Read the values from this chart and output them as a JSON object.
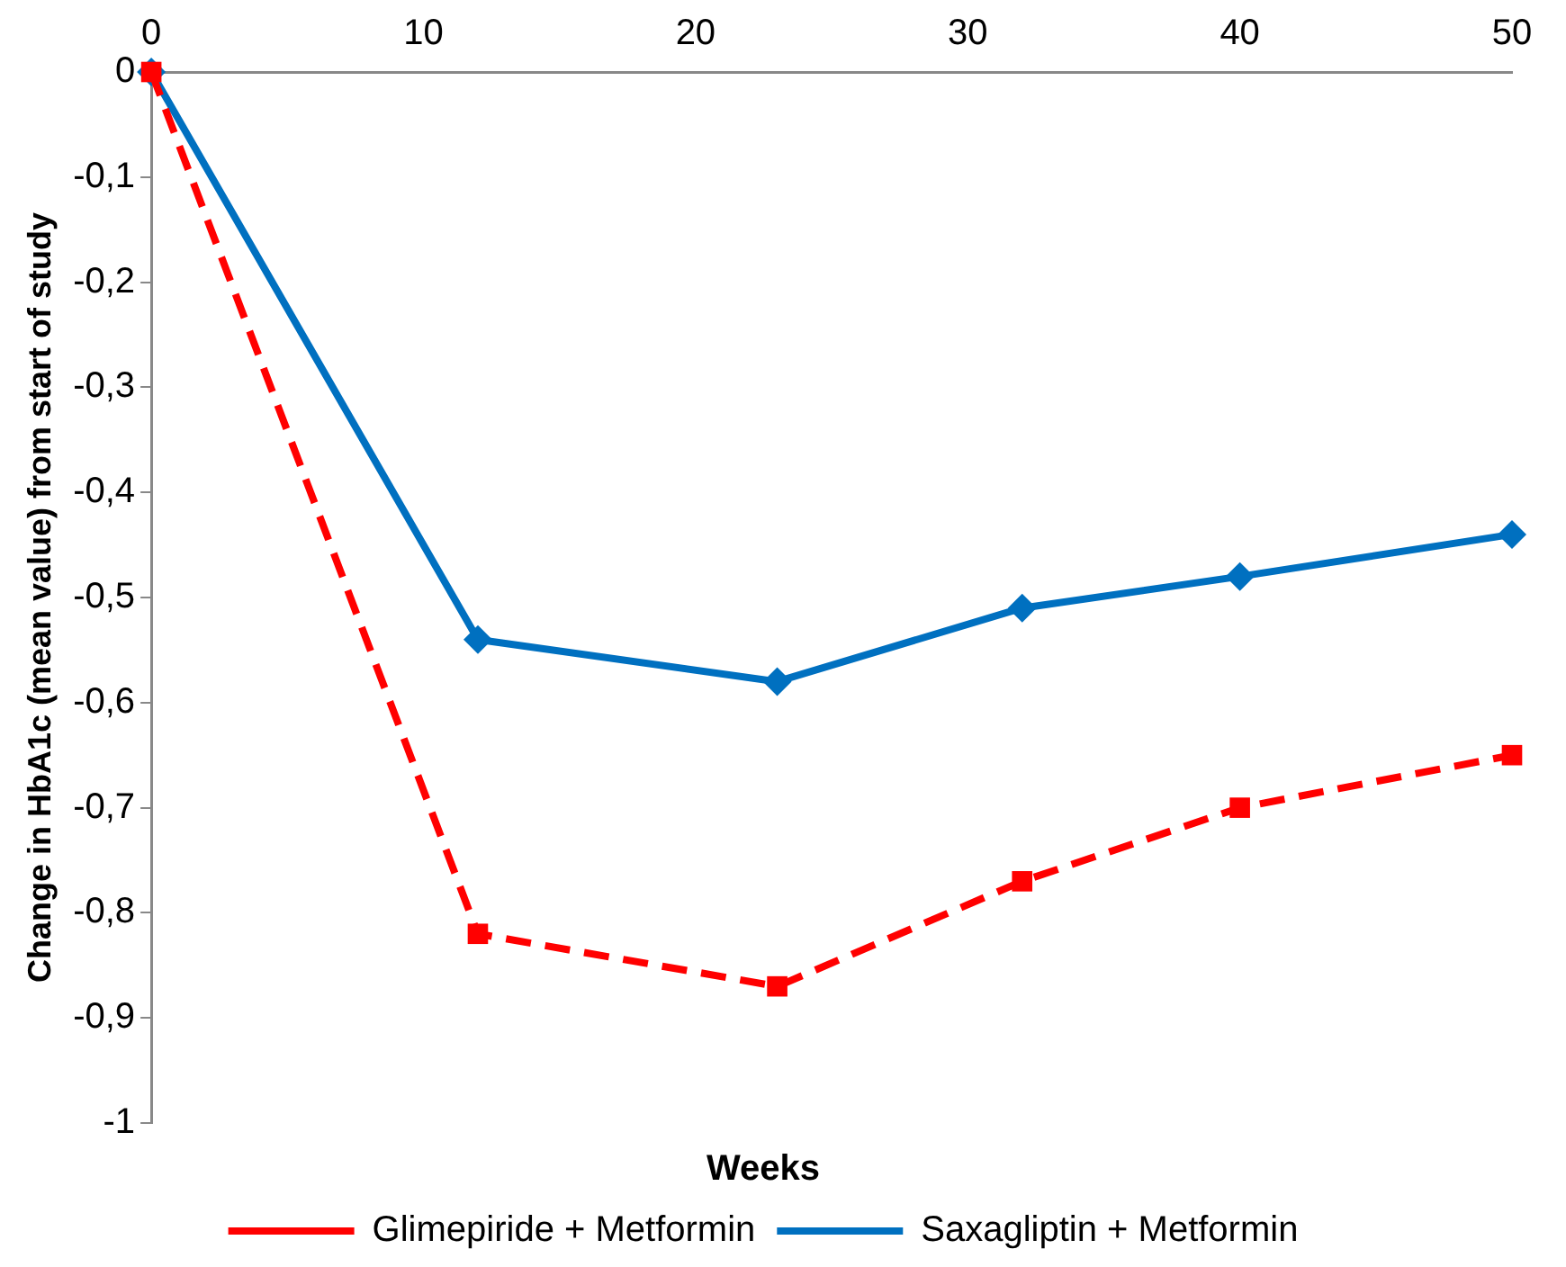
{
  "chart_data": {
    "type": "line",
    "xlabel": "Weeks",
    "ylabel": "Change in HbA1c (mean value) from start of study",
    "series": [
      {
        "name": "Glimepiride + Metformin",
        "color": "#ff0000",
        "marker": "square",
        "line_style": "dashed",
        "x": [
          0,
          12,
          23,
          32,
          40,
          50
        ],
        "values": [
          0,
          -0.82,
          -0.87,
          -0.77,
          -0.7,
          -0.65
        ]
      },
      {
        "name": "Saxagliptin + Metformin",
        "color": "#0070c0",
        "marker": "diamond",
        "line_style": "solid",
        "x": [
          0,
          12,
          23,
          32,
          40,
          50
        ],
        "values": [
          0,
          -0.54,
          -0.58,
          -0.51,
          -0.48,
          -0.44
        ]
      }
    ],
    "xlim": [
      0,
      50
    ],
    "xticks": [
      0,
      10,
      20,
      30,
      40,
      50
    ],
    "ylim": [
      -1,
      0
    ],
    "yticks": [
      {
        "value": -1,
        "label": "-1"
      },
      {
        "value": -0.9,
        "label": "-0,9"
      },
      {
        "value": -0.8,
        "label": "-0,8"
      },
      {
        "value": -0.7,
        "label": "-0,7"
      },
      {
        "value": -0.6,
        "label": "-0,6"
      },
      {
        "value": -0.5,
        "label": "-0,5"
      },
      {
        "value": -0.4,
        "label": "-0,4"
      },
      {
        "value": -0.3,
        "label": "-0,3"
      },
      {
        "value": -0.2,
        "label": "-0,2"
      },
      {
        "value": -0.1,
        "label": "-0,1"
      },
      {
        "value": 0,
        "label": "0"
      }
    ],
    "grid": false,
    "legend": "bottom"
  }
}
